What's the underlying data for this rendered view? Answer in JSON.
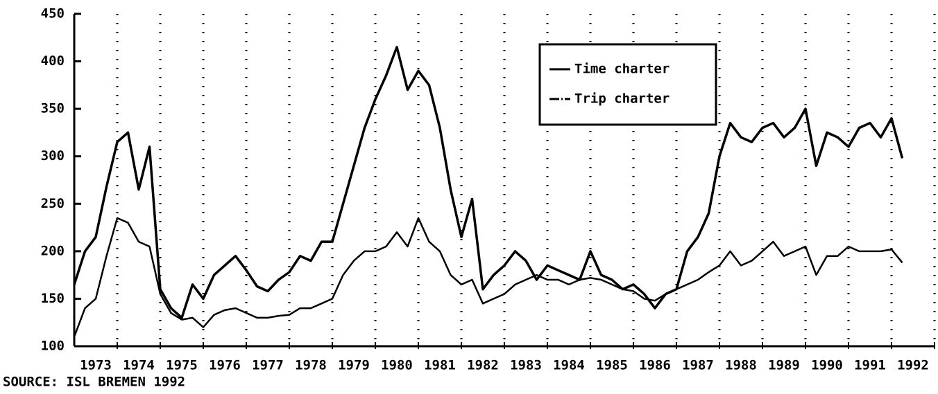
{
  "chart_data": {
    "type": "line",
    "note": "SOURCE: ISL BREMEN 1992",
    "x": [
      1973.0,
      1973.25,
      1973.5,
      1973.75,
      1974.0,
      1974.25,
      1974.5,
      1974.75,
      1975.0,
      1975.25,
      1975.5,
      1975.75,
      1976.0,
      1976.25,
      1976.5,
      1976.75,
      1977.0,
      1977.25,
      1977.5,
      1977.75,
      1978.0,
      1978.25,
      1978.5,
      1978.75,
      1979.0,
      1979.25,
      1979.5,
      1979.75,
      1980.0,
      1980.25,
      1980.5,
      1980.75,
      1981.0,
      1981.25,
      1981.5,
      1981.75,
      1982.0,
      1982.25,
      1982.5,
      1982.75,
      1983.0,
      1983.25,
      1983.5,
      1983.75,
      1984.0,
      1984.25,
      1984.5,
      1984.75,
      1985.0,
      1985.25,
      1985.5,
      1985.75,
      1986.0,
      1986.25,
      1986.5,
      1986.75,
      1987.0,
      1987.25,
      1987.5,
      1987.75,
      1988.0,
      1988.25,
      1988.5,
      1988.75,
      1989.0,
      1989.25,
      1989.5,
      1989.75,
      1990.0,
      1990.25,
      1990.5,
      1990.75,
      1991.0,
      1991.25,
      1991.5,
      1991.75,
      1992.0,
      1992.25
    ],
    "series": [
      {
        "name": "Time charter",
        "color": "#000000",
        "values": [
          165,
          200,
          215,
          268,
          315,
          325,
          265,
          310,
          160,
          140,
          130,
          165,
          150,
          175,
          185,
          195,
          180,
          163,
          158,
          170,
          178,
          195,
          190,
          210,
          210,
          250,
          290,
          330,
          360,
          385,
          415,
          370,
          390,
          375,
          330,
          265,
          215,
          255,
          160,
          175,
          185,
          200,
          190,
          170,
          185,
          180,
          175,
          170,
          200,
          175,
          170,
          160,
          165,
          155,
          140,
          155,
          160,
          200,
          215,
          240,
          300,
          335,
          320,
          315,
          330,
          335,
          320,
          330,
          350,
          290,
          325,
          320,
          310,
          330,
          335,
          320,
          340,
          298
        ]
      },
      {
        "name": "Trip charter",
        "color": "#000000",
        "values": [
          110,
          140,
          150,
          195,
          235,
          230,
          210,
          205,
          155,
          135,
          128,
          130,
          120,
          133,
          138,
          140,
          135,
          130,
          130,
          132,
          133,
          140,
          140,
          145,
          150,
          175,
          190,
          200,
          200,
          205,
          220,
          205,
          235,
          210,
          200,
          175,
          165,
          170,
          145,
          150,
          155,
          165,
          170,
          175,
          170,
          170,
          165,
          170,
          172,
          170,
          165,
          160,
          158,
          150,
          148,
          155,
          160,
          165,
          170,
          178,
          185,
          200,
          185,
          190,
          200,
          210,
          195,
          200,
          205,
          175,
          195,
          195,
          205,
          200,
          200,
          200,
          202,
          188
        ]
      }
    ],
    "xlim": [
      1973,
      1993
    ],
    "xticks": [
      {
        "value": 1973.5,
        "label": "1973"
      },
      {
        "value": 1974.5,
        "label": "1974"
      },
      {
        "value": 1975.5,
        "label": "1975"
      },
      {
        "value": 1976.5,
        "label": "1976"
      },
      {
        "value": 1977.5,
        "label": "1977"
      },
      {
        "value": 1978.5,
        "label": "1978"
      },
      {
        "value": 1979.5,
        "label": "1979"
      },
      {
        "value": 1980.5,
        "label": "1980"
      },
      {
        "value": 1981.5,
        "label": "1981"
      },
      {
        "value": 1982.5,
        "label": "1982"
      },
      {
        "value": 1983.5,
        "label": "1983"
      },
      {
        "value": 1984.5,
        "label": "1984"
      },
      {
        "value": 1985.5,
        "label": "1985"
      },
      {
        "value": 1986.5,
        "label": "1986"
      },
      {
        "value": 1987.5,
        "label": "1987"
      },
      {
        "value": 1988.5,
        "label": "1988"
      },
      {
        "value": 1989.5,
        "label": "1989"
      },
      {
        "value": 1990.5,
        "label": "1990"
      },
      {
        "value": 1991.5,
        "label": "1991"
      },
      {
        "value": 1992.5,
        "label": "1992"
      }
    ],
    "xgrid": [
      1974,
      1975,
      1976,
      1977,
      1978,
      1979,
      1980,
      1981,
      1982,
      1983,
      1984,
      1985,
      1986,
      1987,
      1988,
      1989,
      1990,
      1991,
      1992,
      1993
    ],
    "ylim": [
      100,
      450
    ],
    "yticks": [
      100,
      150,
      200,
      250,
      300,
      350,
      400,
      450
    ],
    "legend": "upper right"
  }
}
